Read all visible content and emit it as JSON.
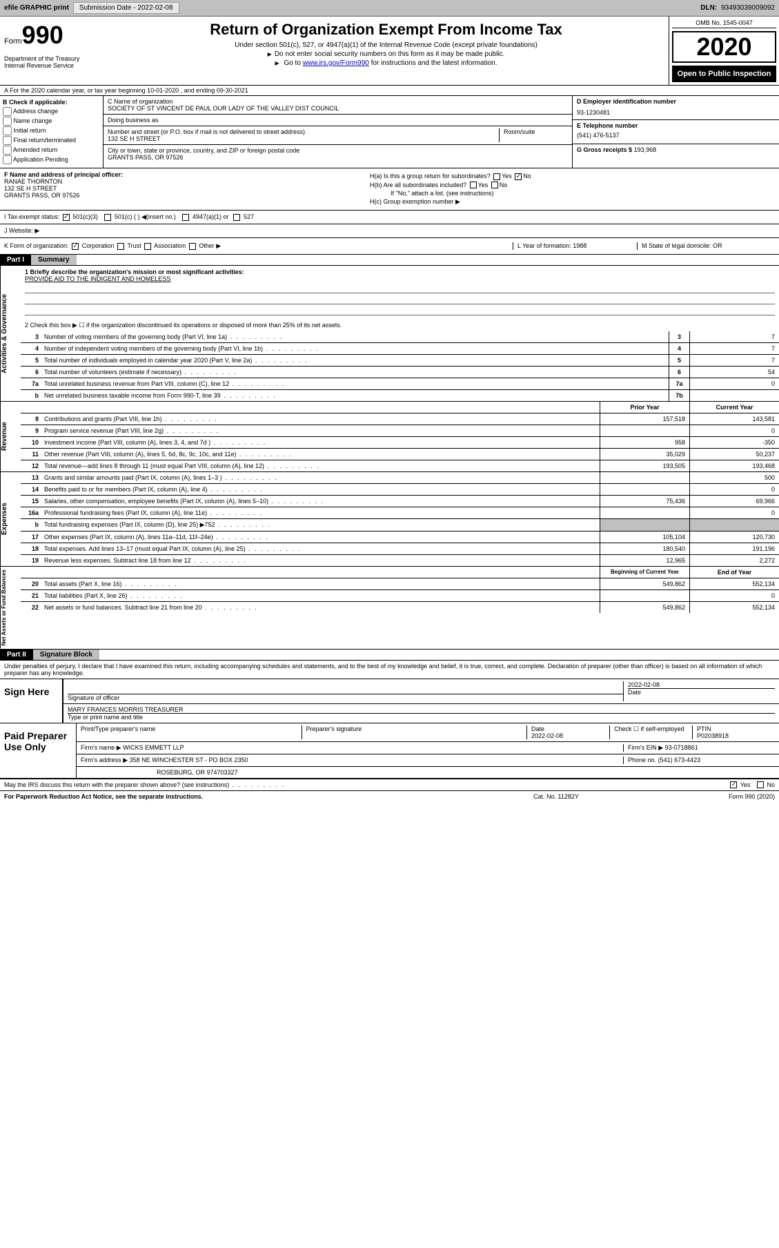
{
  "topbar": {
    "efile": "efile GRAPHIC print",
    "sub_label": "Submission Date",
    "sub_date": "- 2022-02-08",
    "dln_label": "DLN:",
    "dln": "93493039009092"
  },
  "header": {
    "form_word": "Form",
    "form_num": "990",
    "dept": "Department of the Treasury Internal Revenue Service",
    "title": "Return of Organization Exempt From Income Tax",
    "sub1": "Under section 501(c), 527, or 4947(a)(1) of the Internal Revenue Code (except private foundations)",
    "sub2": "Do not enter social security numbers on this form as it may be made public.",
    "sub3_pre": "Go to ",
    "sub3_link": "www.irs.gov/Form990",
    "sub3_post": " for instructions and the latest information.",
    "omb": "OMB No. 1545-0047",
    "year": "2020",
    "open": "Open to Public Inspection"
  },
  "section_a": "A For the 2020 calendar year, or tax year beginning 10-01-2020    , and ending 09-30-2021",
  "col_b": {
    "header": "B Check if applicable:",
    "items": [
      "Address change",
      "Name change",
      "Initial return",
      "Final return/terminated",
      "Amended return",
      "Application Pending"
    ]
  },
  "col_c": {
    "name_label": "C Name of organization",
    "name": "SOCIETY OF ST VINCENT DE PAUL OUR LADY OF THE VALLEY DIST COUNCIL",
    "dba_label": "Doing business as",
    "dba": "",
    "addr_label": "Number and street (or P.O. box if mail is not delivered to street address)",
    "room_label": "Room/suite",
    "addr": "132 SE H STREET",
    "city_label": "City or town, state or province, country, and ZIP or foreign postal code",
    "city": "GRANTS PASS, OR  97526"
  },
  "col_d": {
    "ein_label": "D Employer identification number",
    "ein": "93-1230481",
    "tel_label": "E Telephone number",
    "tel": "(541) 476-5137",
    "gross_label": "G Gross receipts $",
    "gross": "193,968"
  },
  "col_f": {
    "label": "F  Name and address of principal officer:",
    "name": "RANAE THORNTON",
    "addr1": "132 SE H STREET",
    "addr2": "GRANTS PASS, OR  97526"
  },
  "col_h": {
    "a_label": "H(a)  Is this a group return for subordinates?",
    "b_label": "H(b)  Are all subordinates included?",
    "b_note": "If \"No,\" attach a list. (see instructions)",
    "c_label": "H(c)  Group exemption number ▶"
  },
  "row_i": {
    "label": "I    Tax-exempt status:",
    "opt1": "501(c)(3)",
    "opt2": "501(c) (  ) ◀(insert no.)",
    "opt3": "4947(a)(1) or",
    "opt4": "527"
  },
  "row_j": "J    Website: ▶",
  "row_k": {
    "label": "K Form of organization:",
    "opts": [
      "Corporation",
      "Trust",
      "Association",
      "Other ▶"
    ],
    "l_label": "L Year of formation:",
    "l_val": "1988",
    "m_label": "M State of legal domicile:",
    "m_val": "OR"
  },
  "part1": {
    "num": "Part I",
    "title": "Summary"
  },
  "activities": {
    "side": "Activities & Governance",
    "l1": "1   Briefly describe the organization's mission or most significant activities:",
    "l1_val": "PROVIDE AID TO THE INDIGENT AND HOMELESS",
    "l2": "2   Check this box ▶ ☐  if the organization discontinued its operations or disposed of more than 25% of its net assets.",
    "lines": [
      {
        "n": "3",
        "d": "Number of voting members of the governing body (Part VI, line 1a)",
        "b": "3",
        "v": "7"
      },
      {
        "n": "4",
        "d": "Number of independent voting members of the governing body (Part VI, line 1b)",
        "b": "4",
        "v": "7"
      },
      {
        "n": "5",
        "d": "Total number of individuals employed in calendar year 2020 (Part V, line 2a)",
        "b": "5",
        "v": "7"
      },
      {
        "n": "6",
        "d": "Total number of volunteers (estimate if necessary)",
        "b": "6",
        "v": "54"
      },
      {
        "n": "7a",
        "d": "Total unrelated business revenue from Part VIII, column (C), line 12",
        "b": "7a",
        "v": "0"
      },
      {
        "n": "b",
        "d": "Net unrelated business taxable income from Form 990-T, line 39",
        "b": "7b",
        "v": ""
      }
    ]
  },
  "revenue": {
    "side": "Revenue",
    "hdr1": "Prior Year",
    "hdr2": "Current Year",
    "lines": [
      {
        "n": "8",
        "d": "Contributions and grants (Part VIII, line 1h)",
        "v1": "157,518",
        "v2": "143,581"
      },
      {
        "n": "9",
        "d": "Program service revenue (Part VIII, line 2g)",
        "v1": "",
        "v2": "0"
      },
      {
        "n": "10",
        "d": "Investment income (Part VIII, column (A), lines 3, 4, and 7d )",
        "v1": "958",
        "v2": "-350"
      },
      {
        "n": "11",
        "d": "Other revenue (Part VIII, column (A), lines 5, 6d, 8c, 9c, 10c, and 11e)",
        "v1": "35,029",
        "v2": "50,237"
      },
      {
        "n": "12",
        "d": "Total revenue—add lines 8 through 11 (must equal Part VIII, column (A), line 12)",
        "v1": "193,505",
        "v2": "193,468"
      }
    ]
  },
  "expenses": {
    "side": "Expenses",
    "lines": [
      {
        "n": "13",
        "d": "Grants and similar amounts paid (Part IX, column (A), lines 1–3 )",
        "v1": "",
        "v2": "500"
      },
      {
        "n": "14",
        "d": "Benefits paid to or for members (Part IX, column (A), line 4)",
        "v1": "",
        "v2": "0"
      },
      {
        "n": "15",
        "d": "Salaries, other compensation, employee benefits (Part IX, column (A), lines 5–10)",
        "v1": "75,436",
        "v2": "69,966"
      },
      {
        "n": "16a",
        "d": "Professional fundraising fees (Part IX, column (A), line 11e)",
        "v1": "",
        "v2": "0"
      },
      {
        "n": "b",
        "d": "Total fundraising expenses (Part IX, column (D), line 25) ▶752",
        "v1": "",
        "v2": "",
        "shaded": true
      },
      {
        "n": "17",
        "d": "Other expenses (Part IX, column (A), lines 11a–11d, 11f–24e)",
        "v1": "105,104",
        "v2": "120,730"
      },
      {
        "n": "18",
        "d": "Total expenses. Add lines 13–17 (must equal Part IX, column (A), line 25)",
        "v1": "180,540",
        "v2": "191,196"
      },
      {
        "n": "19",
        "d": "Revenue less expenses. Subtract line 18 from line 12",
        "v1": "12,965",
        "v2": "2,272"
      }
    ]
  },
  "netassets": {
    "side": "Net Assets or Fund Balances",
    "hdr1": "Beginning of Current Year",
    "hdr2": "End of Year",
    "lines": [
      {
        "n": "20",
        "d": "Total assets (Part X, line 16)",
        "v1": "549,862",
        "v2": "552,134"
      },
      {
        "n": "21",
        "d": "Total liabilities (Part X, line 26)",
        "v1": "",
        "v2": "0"
      },
      {
        "n": "22",
        "d": "Net assets or fund balances. Subtract line 21 from line 20",
        "v1": "549,862",
        "v2": "552,134"
      }
    ]
  },
  "part2": {
    "num": "Part II",
    "title": "Signature Block"
  },
  "sig": {
    "penalty": "Under penalties of perjury, I declare that I have examined this return, including accompanying schedules and statements, and to the best of my knowledge and belief, it is true, correct, and complete. Declaration of preparer (other than officer) is based on all information of which preparer has any knowledge.",
    "sign_here": "Sign Here",
    "sig_officer": "Signature of officer",
    "date": "2022-02-08",
    "date_label": "Date",
    "name": "MARY FRANCES MORRIS TREASURER",
    "name_label": "Type or print name and title"
  },
  "paid": {
    "label": "Paid Preparer Use Only",
    "prep_name_label": "Print/Type preparer's name",
    "prep_sig_label": "Preparer's signature",
    "prep_date_label": "Date",
    "prep_date": "2022-02-08",
    "self_label": "Check ☐  if self-employed",
    "ptin_label": "PTIN",
    "ptin": "P02038918",
    "firm_label": "Firm's name     ▶",
    "firm": "WICKS EMMETT LLP",
    "ein_label": "Firm's EIN ▶",
    "ein": "93-0718861",
    "addr_label": "Firm's address ▶",
    "addr1": "358 NE WINCHESTER ST - PO BOX 2350",
    "addr2": "ROSEBURG, OR  974703327",
    "phone_label": "Phone no.",
    "phone": "(541) 673-4423"
  },
  "footer": {
    "discuss": "May the IRS discuss this return with the preparer shown above? (see instructions)",
    "paperwork": "For Paperwork Reduction Act Notice, see the separate instructions.",
    "cat": "Cat. No. 11282Y",
    "form": "Form 990 (2020)"
  }
}
